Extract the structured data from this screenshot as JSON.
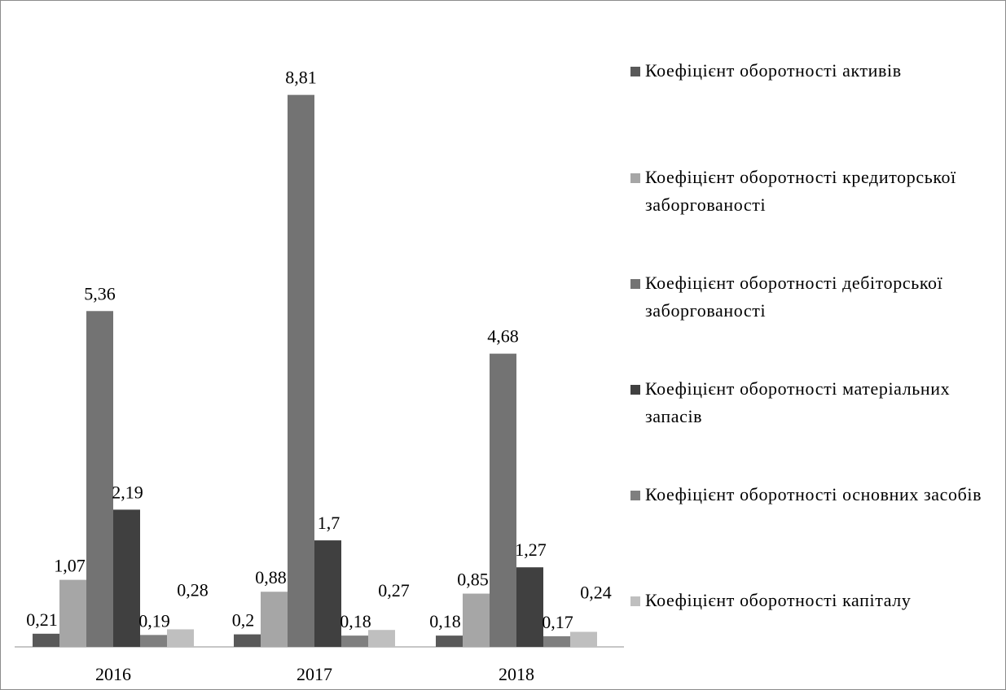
{
  "chart_data": {
    "type": "bar",
    "categories": [
      "2016",
      "2017",
      "2018"
    ],
    "series": [
      {
        "name": "Коефіцієнт оборотності активів",
        "values": [
          0.21,
          0.2,
          0.18
        ],
        "labels": [
          "0,21",
          "0,2",
          "0,18"
        ],
        "color": "#595959"
      },
      {
        "name": "Коефіцієнт оборотності кредиторської заборгованості",
        "values": [
          1.07,
          0.88,
          0.85
        ],
        "labels": [
          "1,07",
          "0,88",
          "0,85"
        ],
        "color": "#a6a6a6"
      },
      {
        "name": "Коефіцієнт оборотності дебіторської заборгованості",
        "values": [
          5.36,
          8.81,
          4.68
        ],
        "labels": [
          "5,36",
          "8,81",
          "4,68"
        ],
        "color": "#737373"
      },
      {
        "name": "Коефіцієнт оборотності матеріальних запасів",
        "values": [
          2.19,
          1.7,
          1.27
        ],
        "labels": [
          "2,19",
          "1,7",
          "1,27"
        ],
        "color": "#404040"
      },
      {
        "name": "Коефіцієнт оборотності основних засобів",
        "values": [
          0.19,
          0.18,
          0.17
        ],
        "labels": [
          "0,19",
          "0,18",
          "0,17"
        ],
        "color": "#7f7f7f"
      },
      {
        "name": "Коефіцієнт оборотності капіталу",
        "values": [
          0.28,
          0.27,
          0.24
        ],
        "labels": [
          "0,28",
          "0,27",
          "0,24"
        ],
        "color": "#bfbfbf"
      }
    ],
    "ylim": [
      0,
      10
    ],
    "grid": false,
    "legend": "right",
    "title": "",
    "xlabel": "",
    "ylabel": ""
  }
}
